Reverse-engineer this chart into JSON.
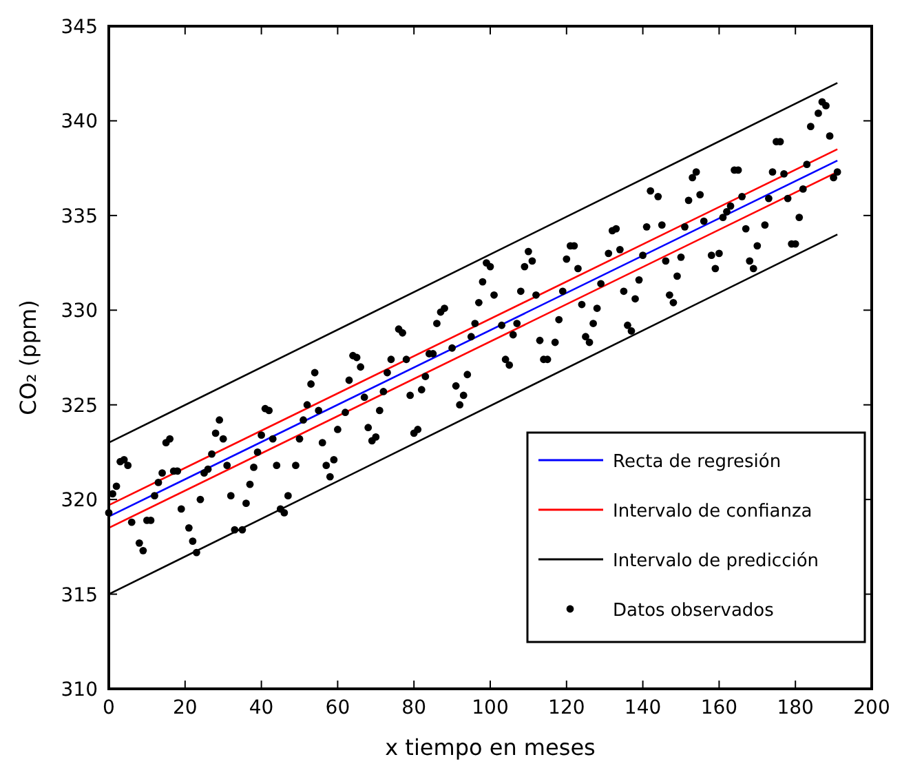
{
  "chart_data": {
    "type": "scatter",
    "xlabel": "x tiempo en meses",
    "ylabel": "CO₂ (ppm)",
    "xlim": [
      0,
      200
    ],
    "xticks": [
      0,
      20,
      40,
      60,
      80,
      100,
      120,
      140,
      160,
      180,
      200
    ],
    "ylim": [
      310,
      345
    ],
    "yticks": [
      310,
      315,
      320,
      325,
      330,
      335,
      340,
      345
    ],
    "grid": false,
    "legend": "bottom right",
    "series": [
      {
        "name": "Recta de regresión",
        "type": "line",
        "color": "#0000ff",
        "x": [
          0,
          191
        ],
        "values": [
          319.1,
          337.9
        ]
      },
      {
        "name": "Intervalo de confianza",
        "type": "line",
        "color": "#ff0000",
        "x": [
          0,
          191
        ],
        "values": [
          319.7,
          338.5
        ]
      },
      {
        "type": "line",
        "color": "#ff0000",
        "x": [
          0,
          191
        ],
        "values": [
          318.5,
          337.3
        ]
      },
      {
        "name": "Intervalo de predicción",
        "type": "line",
        "color": "#000000",
        "x": [
          0,
          191
        ],
        "values": [
          323,
          342
        ]
      },
      {
        "type": "line",
        "color": "#000000",
        "x": [
          0,
          191
        ],
        "values": [
          315,
          334
        ]
      },
      {
        "name": "Datos observados",
        "marker": "circle",
        "color": "#000000",
        "x": [
          0,
          1,
          2,
          3,
          4,
          5,
          6,
          8,
          9,
          10,
          11,
          12,
          13,
          14,
          15,
          16,
          17,
          18,
          19,
          21,
          22,
          23,
          24,
          25,
          26,
          27,
          28,
          29,
          30,
          31,
          32,
          33,
          35,
          36,
          37,
          38,
          39,
          40,
          41,
          42,
          43,
          44,
          45,
          46,
          47,
          49,
          50,
          51,
          52,
          53,
          54,
          55,
          56,
          57,
          58,
          59,
          60,
          62,
          63,
          64,
          65,
          66,
          67,
          68,
          69,
          70,
          71,
          72,
          73,
          74,
          76,
          77,
          78,
          79,
          80,
          81,
          82,
          83,
          84,
          85,
          86,
          87,
          88,
          90,
          91,
          92,
          93,
          94,
          95,
          96,
          97,
          98,
          99,
          100,
          101,
          103,
          104,
          105,
          106,
          107,
          108,
          109,
          110,
          111,
          112,
          113,
          114,
          115,
          117,
          118,
          119,
          120,
          121,
          122,
          123,
          124,
          125,
          126,
          127,
          128,
          129,
          131,
          132,
          133,
          134,
          135,
          136,
          137,
          138,
          139,
          140,
          141,
          142,
          144,
          145,
          146,
          147,
          148,
          149,
          150,
          151,
          152,
          153,
          154,
          155,
          156,
          158,
          159,
          160,
          161,
          162,
          163,
          164,
          165,
          166,
          167,
          168,
          169,
          170,
          172,
          173,
          174,
          175,
          176,
          177,
          178,
          179,
          180,
          181,
          182,
          183,
          184,
          186,
          187,
          188,
          189,
          190,
          191
        ],
        "values": [
          319.3,
          320.3,
          320.7,
          322.0,
          322.1,
          321.8,
          318.8,
          317.7,
          317.3,
          318.9,
          318.9,
          320.2,
          320.9,
          321.4,
          323.0,
          323.2,
          321.5,
          321.5,
          319.5,
          318.5,
          317.8,
          317.2,
          320.0,
          321.4,
          321.6,
          322.4,
          323.5,
          324.2,
          323.2,
          321.8,
          320.2,
          318.4,
          318.4,
          319.8,
          320.8,
          321.7,
          322.5,
          323.4,
          324.8,
          324.7,
          323.2,
          321.8,
          319.5,
          319.3,
          320.2,
          321.8,
          323.2,
          324.2,
          325.0,
          326.1,
          326.7,
          324.7,
          323.0,
          321.8,
          321.2,
          322.1,
          323.7,
          324.6,
          326.3,
          327.6,
          327.5,
          327.0,
          325.4,
          323.8,
          323.1,
          323.3,
          324.7,
          325.7,
          326.7,
          327.4,
          329.0,
          328.8,
          327.4,
          325.5,
          323.5,
          323.7,
          325.8,
          326.5,
          327.7,
          327.7,
          329.3,
          329.9,
          330.1,
          328.0,
          326.0,
          325.0,
          325.5,
          326.6,
          328.6,
          329.3,
          330.4,
          331.5,
          332.5,
          332.3,
          330.8,
          329.2,
          327.4,
          327.1,
          328.7,
          329.3,
          331.0,
          332.3,
          333.1,
          332.6,
          330.8,
          328.4,
          327.4,
          327.4,
          328.3,
          329.5,
          331.0,
          332.7,
          333.4,
          333.4,
          332.2,
          330.3,
          328.6,
          328.3,
          329.3,
          330.1,
          331.4,
          333.0,
          334.2,
          334.3,
          333.2,
          331.0,
          329.2,
          328.9,
          330.6,
          331.6,
          332.9,
          334.4,
          336.3,
          336.0,
          334.5,
          332.6,
          330.8,
          330.4,
          331.8,
          332.8,
          334.4,
          335.8,
          337.0,
          337.3,
          336.1,
          334.7,
          332.9,
          332.2,
          333.0,
          334.9,
          335.2,
          335.5,
          337.4,
          337.4,
          336.0,
          334.3,
          332.6,
          332.2,
          333.4,
          334.5,
          335.9,
          337.3,
          338.9,
          338.9,
          337.2,
          335.9,
          333.5,
          333.5,
          334.9,
          336.4,
          337.7,
          339.7,
          340.4,
          341.0,
          340.8,
          339.2,
          337.0,
          337.3
        ]
      }
    ]
  }
}
